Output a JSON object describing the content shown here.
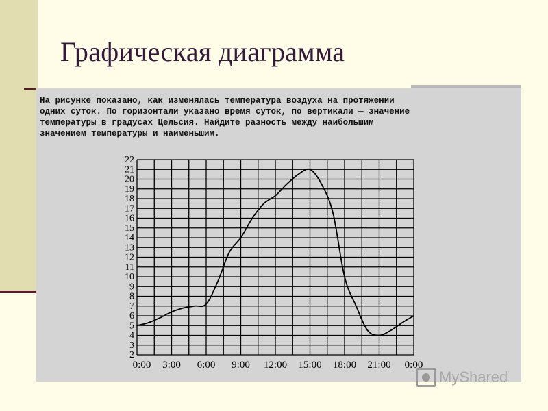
{
  "slide": {
    "title": "Графическая диаграмма",
    "problem_lines": [
      "На рисунке показано, как изменялась температура воздуха на протяжении",
      "одних суток. По горизонтали указано время суток, по вертикали — значение",
      "температуры в градусах Цельсия. Найдите разность между наибольшим",
      "значением температуры и наименьшим."
    ],
    "watermark_text": "MyShared"
  },
  "colors": {
    "background": "#fffde8",
    "left_band": "#e1ddb0",
    "accent_line": "#5a1830",
    "title_text": "#341a3a",
    "panel": "#d4d4d4",
    "grid": "#000000",
    "curve": "#000000"
  },
  "chart_data": {
    "type": "line",
    "title": "",
    "xlabel": "",
    "ylabel": "",
    "x_ticks": [
      "0:00",
      "3:00",
      "6:00",
      "9:00",
      "12:00",
      "15:00",
      "18:00",
      "21:00",
      "0:00"
    ],
    "y_ticks": [
      2,
      3,
      4,
      5,
      6,
      7,
      8,
      9,
      10,
      11,
      12,
      13,
      14,
      15,
      16,
      17,
      18,
      19,
      20,
      21,
      22
    ],
    "xlim_hours": [
      0,
      24
    ],
    "ylim": [
      2,
      22
    ],
    "grid": true,
    "series": [
      {
        "x_hours": [
          0,
          1,
          2,
          3,
          4,
          5,
          6,
          7,
          8,
          9,
          10,
          11,
          12,
          13,
          14,
          15,
          16,
          17,
          18,
          19,
          20,
          21,
          22,
          23,
          24
        ],
        "values": [
          5,
          5.3,
          5.8,
          6.4,
          6.8,
          7,
          7.2,
          9.5,
          12.5,
          14,
          16,
          17.5,
          18.3,
          19.5,
          20.5,
          21,
          19.5,
          16.5,
          10,
          7,
          4.5,
          4,
          4.5,
          5.3,
          6
        ]
      }
    ]
  }
}
